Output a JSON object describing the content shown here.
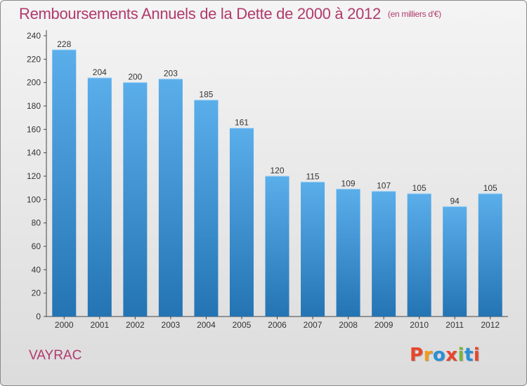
{
  "header": {
    "title": "Remboursements Annuels de la Dette de 2000 à 2012",
    "unit": "(en milliers d'€)"
  },
  "footer": {
    "city": "VAYRAC",
    "logo_text": "Proxiti"
  },
  "colors": {
    "title": "#b03a6a",
    "bar_top": "#5aaeea",
    "bar_bottom": "#2474b4",
    "logo": [
      "#e8452e",
      "#f39a1a",
      "#2a8fd6",
      "#e8452e",
      "#7ab63a",
      "#2a8fd6",
      "#e8452e"
    ]
  },
  "chart_data": {
    "type": "bar",
    "categories": [
      "2000",
      "2001",
      "2002",
      "2003",
      "2004",
      "2005",
      "2006",
      "2007",
      "2008",
      "2009",
      "2010",
      "2011",
      "2012"
    ],
    "values": [
      228,
      204,
      200,
      203,
      185,
      161,
      120,
      115,
      109,
      107,
      105,
      94,
      105
    ],
    "ylim": [
      0,
      240
    ],
    "yticks": [
      0,
      20,
      40,
      60,
      80,
      100,
      120,
      140,
      160,
      180,
      200,
      220,
      240
    ],
    "grid": false,
    "data_labels": true
  }
}
